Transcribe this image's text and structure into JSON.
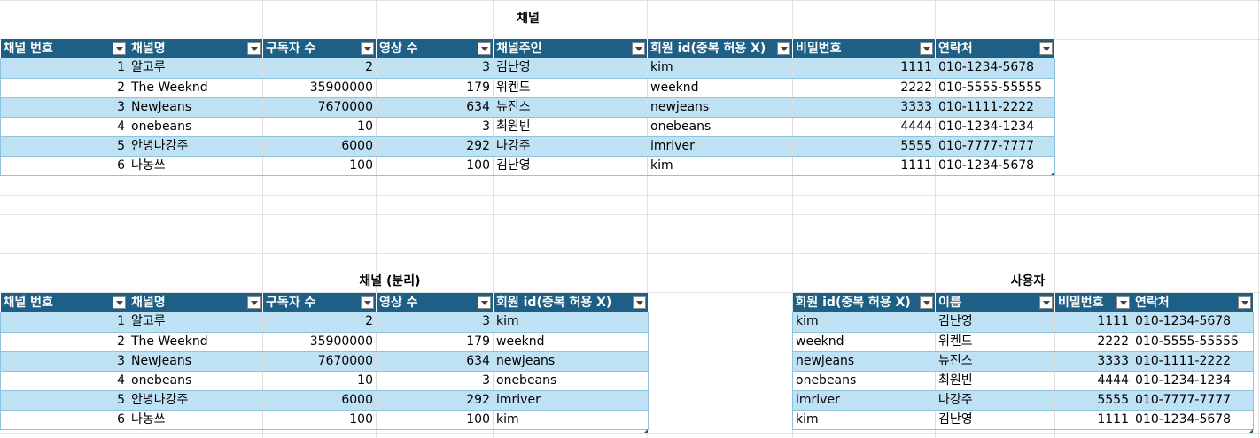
{
  "titles": {
    "top": "채널",
    "left": "채널 (분리)",
    "right": "사용자"
  },
  "table1": {
    "headers": [
      "채널 번호",
      "채널명",
      "구독자 수",
      "영상 수",
      "채널주인",
      "회원 id(중복 허용 X)",
      "비밀번호",
      "연락처"
    ],
    "rows": [
      [
        "1",
        "알고루",
        "2",
        "3",
        "김난영",
        "kim",
        "1111",
        "010-1234-5678"
      ],
      [
        "2",
        "The Weeknd",
        "35900000",
        "179",
        "위켄드",
        "weeknd",
        "2222",
        "010-5555-55555"
      ],
      [
        "3",
        "NewJeans",
        "7670000",
        "634",
        "뉴진스",
        "newjeans",
        "3333",
        "010-1111-2222"
      ],
      [
        "4",
        "onebeans",
        "10",
        "3",
        "최원빈",
        "onebeans",
        "4444",
        "010-1234-1234"
      ],
      [
        "5",
        "안녕나강주",
        "6000",
        "292",
        "나강주",
        "imriver",
        "5555",
        "010-7777-7777"
      ],
      [
        "6",
        "나농쓰",
        "100",
        "100",
        "김난영",
        "kim",
        "1111",
        "010-1234-5678"
      ]
    ]
  },
  "table2": {
    "headers": [
      "채널 번호",
      "채널명",
      "구독자 수",
      "영상 수",
      "회원 id(중복 허용 X)"
    ],
    "rows": [
      [
        "1",
        "알고루",
        "2",
        "3",
        "kim"
      ],
      [
        "2",
        "The Weeknd",
        "35900000",
        "179",
        "weeknd"
      ],
      [
        "3",
        "NewJeans",
        "7670000",
        "634",
        "newjeans"
      ],
      [
        "4",
        "onebeans",
        "10",
        "3",
        "onebeans"
      ],
      [
        "5",
        "안녕나강주",
        "6000",
        "292",
        "imriver"
      ],
      [
        "6",
        "나농쓰",
        "100",
        "100",
        "kim"
      ]
    ]
  },
  "table3": {
    "headers": [
      "회원 id(중복 허용 X)",
      "이름",
      "비밀번호",
      "연락처"
    ],
    "rows": [
      [
        "kim",
        "김난영",
        "1111",
        "010-1234-5678"
      ],
      [
        "weeknd",
        "위켄드",
        "2222",
        "010-5555-55555"
      ],
      [
        "newjeans",
        "뉴진스",
        "3333",
        "010-1111-2222"
      ],
      [
        "onebeans",
        "최원빈",
        "4444",
        "010-1234-1234"
      ],
      [
        "imriver",
        "나강주",
        "5555",
        "010-7777-7777"
      ],
      [
        "kim",
        "김난영",
        "1111",
        "010-1234-5678"
      ]
    ]
  }
}
